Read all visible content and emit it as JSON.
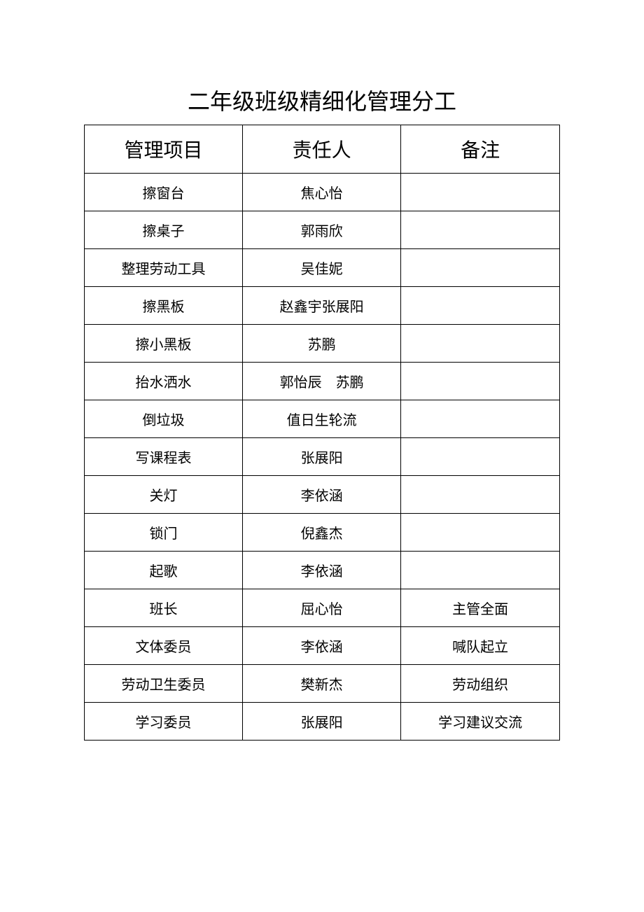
{
  "title": "二年级班级精细化管理分工",
  "table": {
    "columns": [
      "管理项目",
      "责任人",
      "备注"
    ],
    "column_widths": [
      "33.3%",
      "33.3%",
      "33.4%"
    ],
    "header_fontsize": 28,
    "cell_fontsize": 20,
    "border_color": "#000000",
    "text_color": "#000000",
    "background_color": "#ffffff",
    "rows": [
      [
        "擦窗台",
        "焦心怡",
        ""
      ],
      [
        "擦桌子",
        "郭雨欣",
        ""
      ],
      [
        "整理劳动工具",
        "吴佳妮",
        ""
      ],
      [
        "擦黑板",
        "赵鑫宇张展阳",
        ""
      ],
      [
        "擦小黑板",
        "苏鹏",
        ""
      ],
      [
        "抬水洒水",
        "郭怡辰 苏鹏",
        ""
      ],
      [
        "倒垃圾",
        "值日生轮流",
        ""
      ],
      [
        "写课程表",
        "张展阳",
        ""
      ],
      [
        "关灯",
        "李依涵",
        ""
      ],
      [
        "锁门",
        "倪鑫杰",
        ""
      ],
      [
        "起歌",
        "李依涵",
        ""
      ],
      [
        "班长",
        "屈心怡",
        "主管全面"
      ],
      [
        "文体委员",
        "李依涵",
        "喊队起立"
      ],
      [
        "劳动卫生委员",
        "樊新杰",
        "劳动组织"
      ],
      [
        "学习委员",
        "张展阳",
        "学习建议交流"
      ]
    ]
  }
}
